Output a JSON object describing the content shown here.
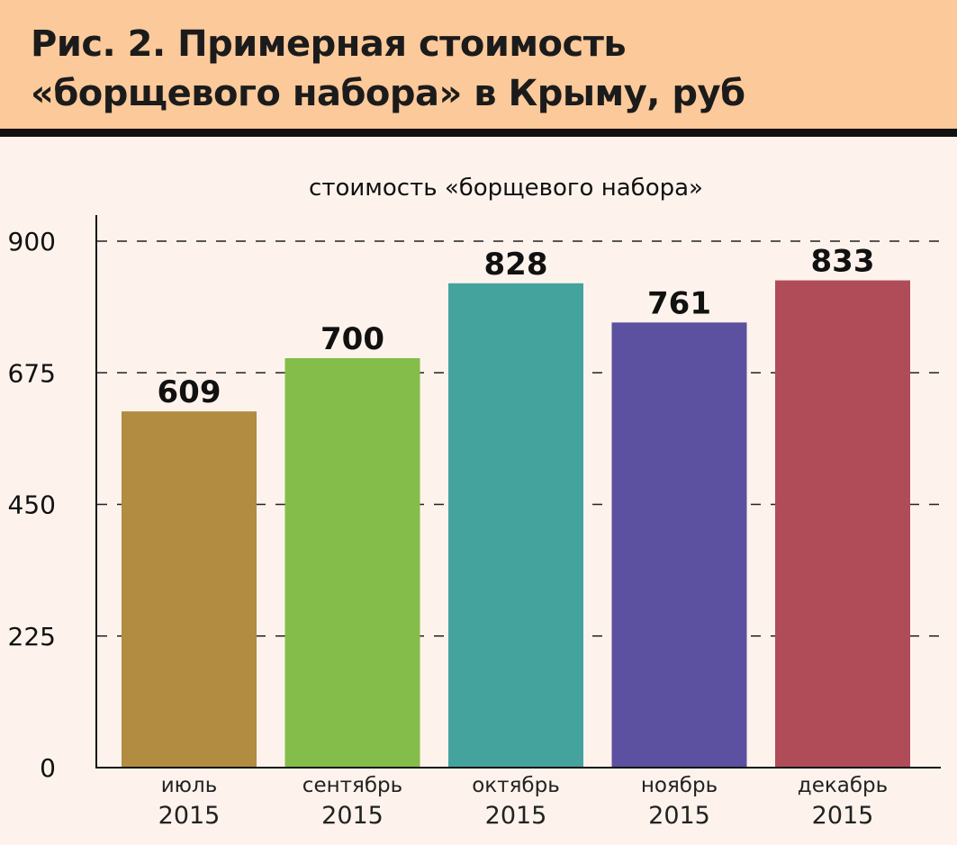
{
  "title_line1": "Рис. 2. Примерная стоимость",
  "title_line2": "«борщевого набора» в Крыму, руб",
  "chart_data": {
    "type": "bar",
    "title": "стоимость «борщевого набора»",
    "categories": [
      [
        "июль",
        "2015"
      ],
      [
        "сентябрь",
        "2015"
      ],
      [
        "октябрь",
        "2015"
      ],
      [
        "ноябрь",
        "2015"
      ],
      [
        "декабрь",
        "2015"
      ]
    ],
    "values": [
      609,
      700,
      828,
      761,
      833
    ],
    "colors": [
      "#b18c41",
      "#84bd49",
      "#45a39e",
      "#5c50a0",
      "#b04b58"
    ],
    "yticks": [
      0,
      225,
      450,
      675,
      900
    ],
    "ylim": [
      0,
      900
    ],
    "grid": true
  }
}
